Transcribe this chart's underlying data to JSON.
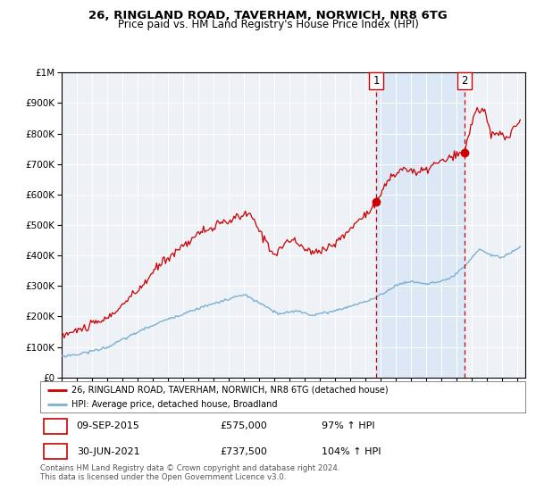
{
  "title_line1": "26, RINGLAND ROAD, TAVERHAM, NORWICH, NR8 6TG",
  "title_line2": "Price paid vs. HM Land Registry's House Price Index (HPI)",
  "legend_line1": "26, RINGLAND ROAD, TAVERHAM, NORWICH, NR8 6TG (detached house)",
  "legend_line2": "HPI: Average price, detached house, Broadland",
  "annotation1_date": "09-SEP-2015",
  "annotation1_price": "£575,000",
  "annotation1_hpi": "97% ↑ HPI",
  "annotation2_date": "30-JUN-2021",
  "annotation2_price": "£737,500",
  "annotation2_hpi": "104% ↑ HPI",
  "footer": "Contains HM Land Registry data © Crown copyright and database right 2024.\nThis data is licensed under the Open Government Licence v3.0.",
  "red_line_color": "#cc0000",
  "blue_line_color": "#7bafd4",
  "bg_color": "#ffffff",
  "plot_bg_color": "#eef2f7",
  "highlight_bg_color": "#dce8f5",
  "grid_color": "#ffffff",
  "dashed_line_color": "#cc0000",
  "point1_date_num": 2015.69,
  "point1_value": 575000,
  "point2_date_num": 2021.5,
  "point2_value": 737500,
  "ylim_min": 0,
  "ylim_max": 1000000,
  "xlim_start": 1995.0,
  "xlim_end": 2025.5
}
